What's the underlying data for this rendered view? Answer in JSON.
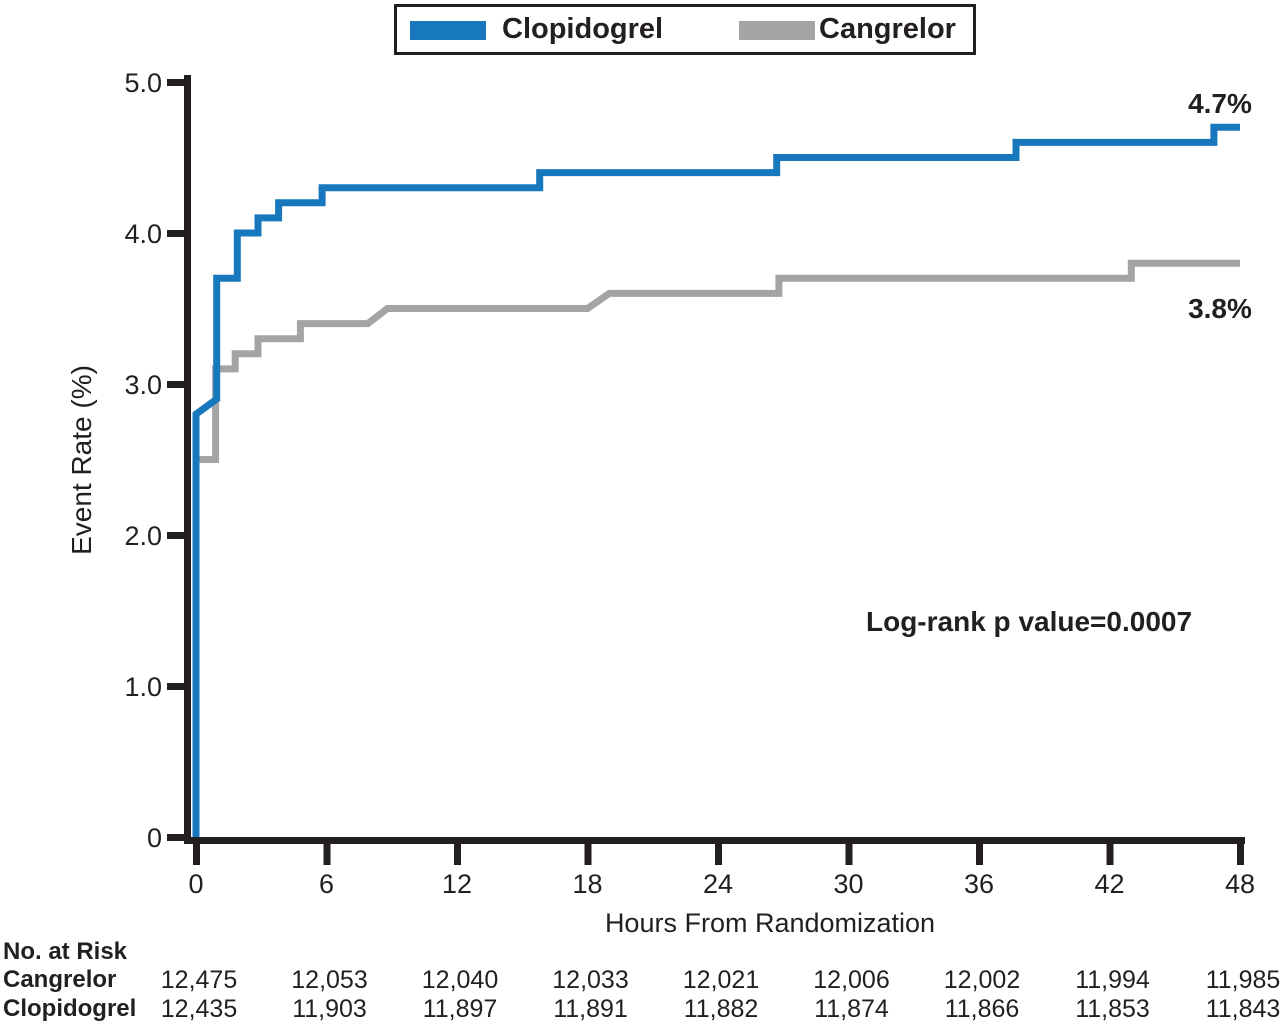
{
  "legend": {
    "items": [
      {
        "label": "Clopidogrel",
        "color": "#1878be"
      },
      {
        "label": "Cangrelor",
        "color": "#a2a4a6"
      }
    ]
  },
  "chart_data": {
    "type": "line",
    "subtype": "kaplan-meier-step",
    "title": "",
    "xlabel": "Hours From Randomization",
    "ylabel": "Event Rate (%)",
    "xlim": [
      0,
      48
    ],
    "ylim": [
      0,
      5.0
    ],
    "xticks": [
      0,
      6,
      12,
      18,
      24,
      30,
      36,
      42,
      48
    ],
    "yticks": [
      {
        "v": 0,
        "label": "0"
      },
      {
        "v": 1.0,
        "label": "1.0"
      },
      {
        "v": 2.0,
        "label": "2.0"
      },
      {
        "v": 3.0,
        "label": "3.0"
      },
      {
        "v": 4.0,
        "label": "4.0"
      },
      {
        "v": 5.0,
        "label": "5.0"
      }
    ],
    "grid": false,
    "legend_position": "top-center",
    "axis_color": "#231f20",
    "series": [
      {
        "name": "Cangrelor",
        "color": "#a2a4a6",
        "end_label": "3.8%",
        "points": [
          [
            0,
            0
          ],
          [
            0,
            2.5
          ],
          [
            0.9,
            2.5
          ],
          [
            0.9,
            3.1
          ],
          [
            1.8,
            3.1
          ],
          [
            1.8,
            3.2
          ],
          [
            2.85,
            3.2
          ],
          [
            2.85,
            3.3
          ],
          [
            4.8,
            3.3
          ],
          [
            4.8,
            3.4
          ],
          [
            7.9,
            3.4
          ],
          [
            8.8,
            3.5
          ],
          [
            18.0,
            3.5
          ],
          [
            19.0,
            3.6
          ],
          [
            26.8,
            3.6
          ],
          [
            26.8,
            3.7
          ],
          [
            43.0,
            3.7
          ],
          [
            43.0,
            3.8
          ],
          [
            48,
            3.8
          ]
        ]
      },
      {
        "name": "Clopidogrel",
        "color": "#1878be",
        "end_label": "4.7%",
        "points": [
          [
            0,
            0
          ],
          [
            0,
            2.8
          ],
          [
            0.95,
            2.9
          ],
          [
            0.95,
            3.7
          ],
          [
            1.9,
            3.7
          ],
          [
            1.9,
            4.0
          ],
          [
            2.85,
            4.0
          ],
          [
            2.85,
            4.1
          ],
          [
            3.8,
            4.1
          ],
          [
            3.8,
            4.2
          ],
          [
            5.8,
            4.2
          ],
          [
            5.8,
            4.3
          ],
          [
            15.8,
            4.3
          ],
          [
            15.8,
            4.4
          ],
          [
            26.7,
            4.4
          ],
          [
            26.7,
            4.5
          ],
          [
            37.7,
            4.5
          ],
          [
            37.7,
            4.6
          ],
          [
            46.8,
            4.6
          ],
          [
            46.8,
            4.7
          ],
          [
            48,
            4.7
          ]
        ]
      }
    ],
    "annotations": [
      {
        "text": "Log-rank p value=0.0007",
        "position": "lower-right"
      },
      {
        "text": "4.7%",
        "series": "Clopidogrel",
        "position": "end-of-curve"
      },
      {
        "text": "3.8%",
        "series": "Cangrelor",
        "position": "end-of-curve"
      }
    ]
  },
  "risk_table": {
    "title": "No. at Risk",
    "columns_hours": [
      0,
      6,
      12,
      18,
      24,
      30,
      36,
      42,
      48
    ],
    "rows": [
      {
        "label": "Cangrelor",
        "values": [
          "12,475",
          "12,053",
          "12,040",
          "12,033",
          "12,021",
          "12,006",
          "12,002",
          "11,994",
          "11,985"
        ]
      },
      {
        "label": "Clopidogrel",
        "values": [
          "12,435",
          "11,903",
          "11,897",
          "11,891",
          "11,882",
          "11,874",
          "11,866",
          "11,853",
          "11,843"
        ]
      }
    ]
  }
}
